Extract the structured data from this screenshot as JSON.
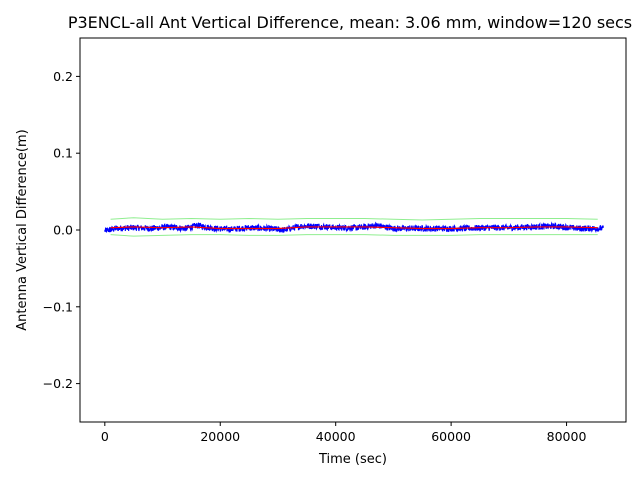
{
  "chart_data": {
    "type": "line",
    "title": "P3ENCL-all Ant Vertical Difference, mean: 3.06 mm, window=120 secs",
    "xlabel": "Time (sec)",
    "ylabel": "Antenna Vertical Difference(m)",
    "xlim": [
      -4300,
      90300
    ],
    "ylim": [
      -0.25,
      0.25
    ],
    "x_ticks": [
      0,
      20000,
      40000,
      60000,
      80000
    ],
    "x_tick_labels": [
      "0",
      "20000",
      "40000",
      "60000",
      "80000"
    ],
    "y_ticks": [
      -0.2,
      -0.1,
      0.0,
      0.1,
      0.2
    ],
    "y_tick_labels": [
      "−0.2",
      "−0.1",
      "0.0",
      "0.1",
      "0.2"
    ],
    "grid": false,
    "colors": {
      "data": "#0000ff",
      "mean": "#ff0000",
      "envelope": "#90ee90"
    },
    "series": [
      {
        "role": "data",
        "color": "#0000ff",
        "x_start": 0,
        "x_end": 86400,
        "mean": 0.0031,
        "noise_amplitude": 0.004,
        "wander_points": [
          [
            0,
            -0.001
          ],
          [
            2000,
            0.002
          ],
          [
            5000,
            0.003
          ],
          [
            8000,
            0.002
          ],
          [
            11000,
            0.004
          ],
          [
            14000,
            0.002
          ],
          [
            16000,
            0.006
          ],
          [
            19000,
            0.002
          ],
          [
            22000,
            0.001
          ],
          [
            25000,
            0.003
          ],
          [
            28000,
            0.002
          ],
          [
            31000,
            0.0
          ],
          [
            34000,
            0.005
          ],
          [
            37000,
            0.005
          ],
          [
            40000,
            0.003
          ],
          [
            44000,
            0.003
          ],
          [
            47000,
            0.006
          ],
          [
            50000,
            0.002
          ],
          [
            54000,
            0.002
          ],
          [
            58000,
            0.002
          ],
          [
            62000,
            0.002
          ],
          [
            66000,
            0.003
          ],
          [
            70000,
            0.003
          ],
          [
            74000,
            0.004
          ],
          [
            78000,
            0.005
          ],
          [
            82000,
            0.002
          ],
          [
            86400,
            0.002
          ]
        ]
      },
      {
        "role": "rolling-mean",
        "color": "#ff0000",
        "x": [
          1000,
          5000,
          10000,
          15000,
          20000,
          25000,
          30000,
          35000,
          40000,
          45000,
          50000,
          55000,
          60000,
          65000,
          70000,
          75000,
          80000,
          85400
        ],
        "y": [
          0.003,
          0.004,
          0.003,
          0.004,
          0.002,
          0.002,
          0.002,
          0.004,
          0.004,
          0.004,
          0.003,
          0.002,
          0.002,
          0.003,
          0.003,
          0.004,
          0.004,
          0.003
        ]
      },
      {
        "role": "upper-envelope",
        "color": "#90ee90",
        "x": [
          1000,
          5000,
          10000,
          15000,
          20000,
          25000,
          30000,
          35000,
          40000,
          45000,
          50000,
          55000,
          60000,
          65000,
          70000,
          75000,
          80000,
          85400
        ],
        "y": [
          0.014,
          0.016,
          0.014,
          0.015,
          0.014,
          0.015,
          0.014,
          0.015,
          0.015,
          0.015,
          0.014,
          0.013,
          0.014,
          0.015,
          0.015,
          0.015,
          0.015,
          0.014
        ]
      },
      {
        "role": "lower-envelope",
        "color": "#90ee90",
        "x": [
          1000,
          5000,
          10000,
          15000,
          20000,
          25000,
          30000,
          35000,
          40000,
          45000,
          50000,
          55000,
          60000,
          65000,
          70000,
          75000,
          80000,
          85400
        ],
        "y": [
          -0.006,
          -0.008,
          -0.007,
          -0.006,
          -0.006,
          -0.007,
          -0.007,
          -0.006,
          -0.006,
          -0.006,
          -0.007,
          -0.007,
          -0.007,
          -0.006,
          -0.006,
          -0.006,
          -0.006,
          -0.006
        ]
      }
    ]
  }
}
